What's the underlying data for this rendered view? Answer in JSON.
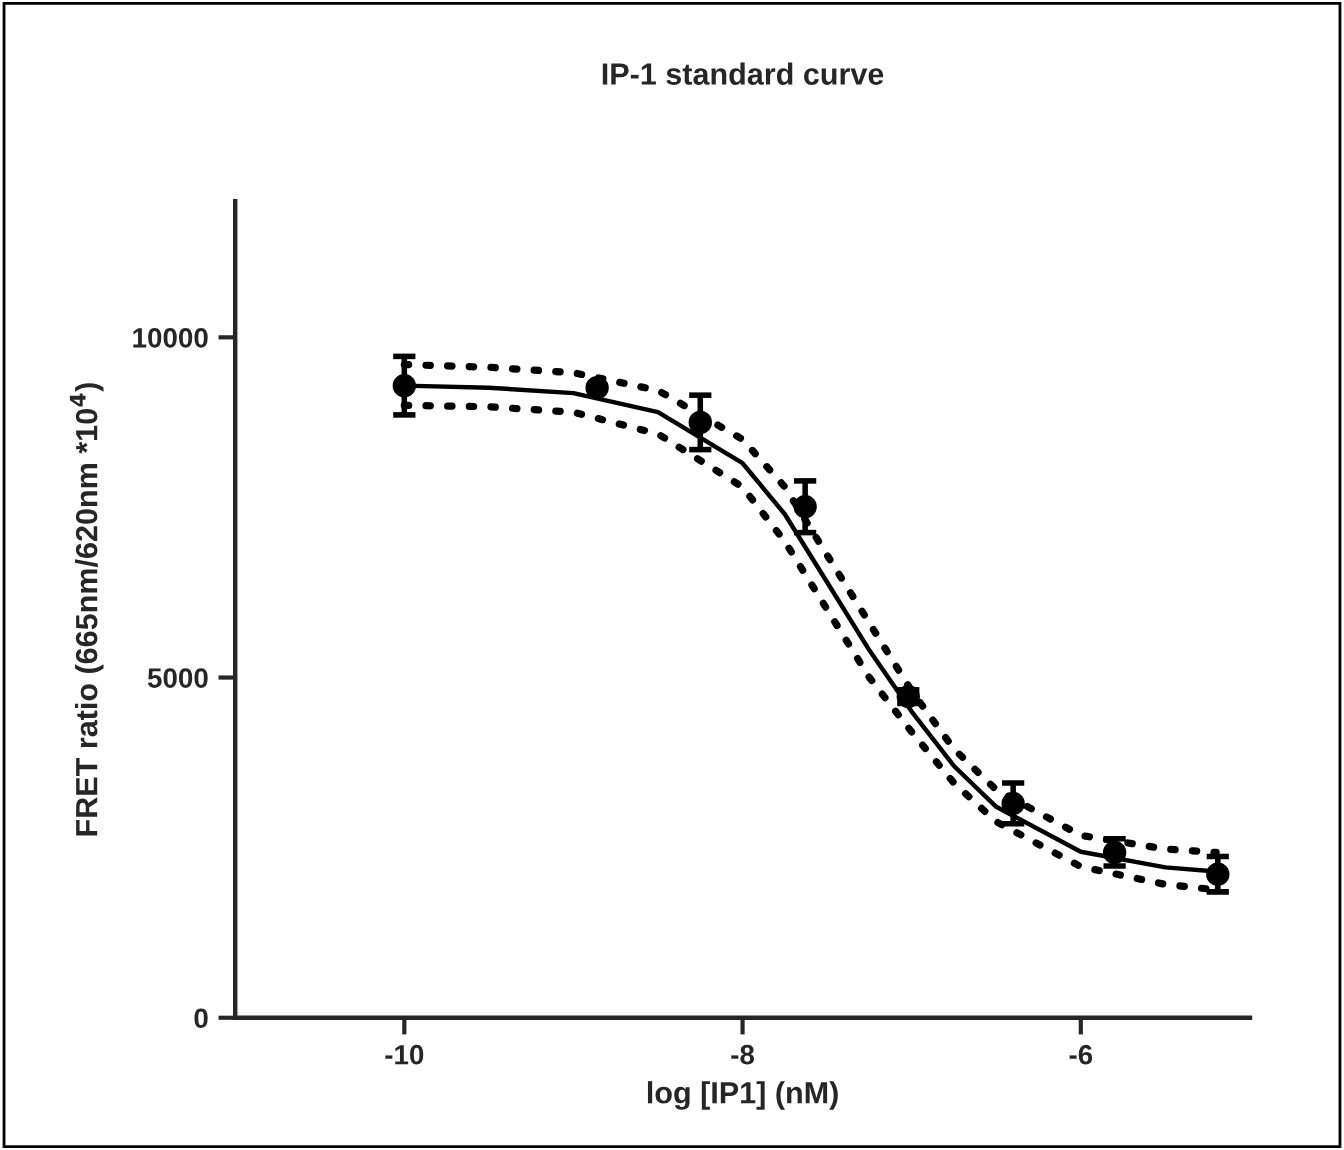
{
  "chart_data": {
    "type": "scatter",
    "title": "IP-1 standard curve",
    "xlabel": "log [IP1] (nM)",
    "ylabel": "FRET ratio (665nm/620nm *10$^{4}$)",
    "xlim": [
      -11,
      -5
    ],
    "xticks": [
      -10,
      -8,
      -6
    ],
    "ylim": [
      0,
      12000
    ],
    "yticks": [
      0,
      5000,
      10000
    ],
    "grid": false,
    "legend": false,
    "series": [
      {
        "color": "#000000",
        "marker": "circle",
        "x": [
          -10,
          -8.86,
          -8.25,
          -7.63,
          -7.02,
          -6.4,
          -5.8,
          -5.19
        ],
        "values": [
          9290,
          9260,
          8750,
          7510,
          4720,
          3150,
          2430,
          2110
        ],
        "errors": [
          430,
          null,
          400,
          380,
          100,
          300,
          200,
          260
        ]
      },
      {
        "type": "line",
        "color": "#000000",
        "marker": "none",
        "line_style": "solid",
        "x": [
          -10,
          -9.5,
          -9,
          -8.5,
          -8,
          -7.75,
          -7.5,
          -7.25,
          -7,
          -6.75,
          -6.5,
          -6,
          -5.5,
          -5.2
        ],
        "values": [
          9290,
          9260,
          9180,
          8900,
          8150,
          7400,
          6400,
          5400,
          4500,
          3700,
          3100,
          2440,
          2210,
          2150
        ]
      },
      {
        "type": "line",
        "color": "#000000",
        "marker": "none",
        "line_style": "dotted",
        "x": [
          -10,
          -9.5,
          -9,
          -8.5,
          -8,
          -7.75,
          -7.5,
          -7.25,
          -7,
          -6.75,
          -6.5,
          -6,
          -5.5,
          -5.2
        ],
        "values": [
          9000,
          8980,
          8900,
          8580,
          7800,
          7000,
          6000,
          5000,
          4200,
          3450,
          2880,
          2220,
          1960,
          1880
        ]
      },
      {
        "type": "line",
        "color": "#000000",
        "marker": "none",
        "line_style": "dotted",
        "x": [
          -10,
          -9.5,
          -9,
          -8.5,
          -8,
          -7.75,
          -7.5,
          -7.25,
          -7,
          -6.75,
          -6.5,
          -6,
          -5.5,
          -5.2
        ],
        "values": [
          9600,
          9560,
          9480,
          9220,
          8500,
          7800,
          6800,
          5800,
          4800,
          3950,
          3350,
          2680,
          2480,
          2430
        ]
      }
    ]
  }
}
